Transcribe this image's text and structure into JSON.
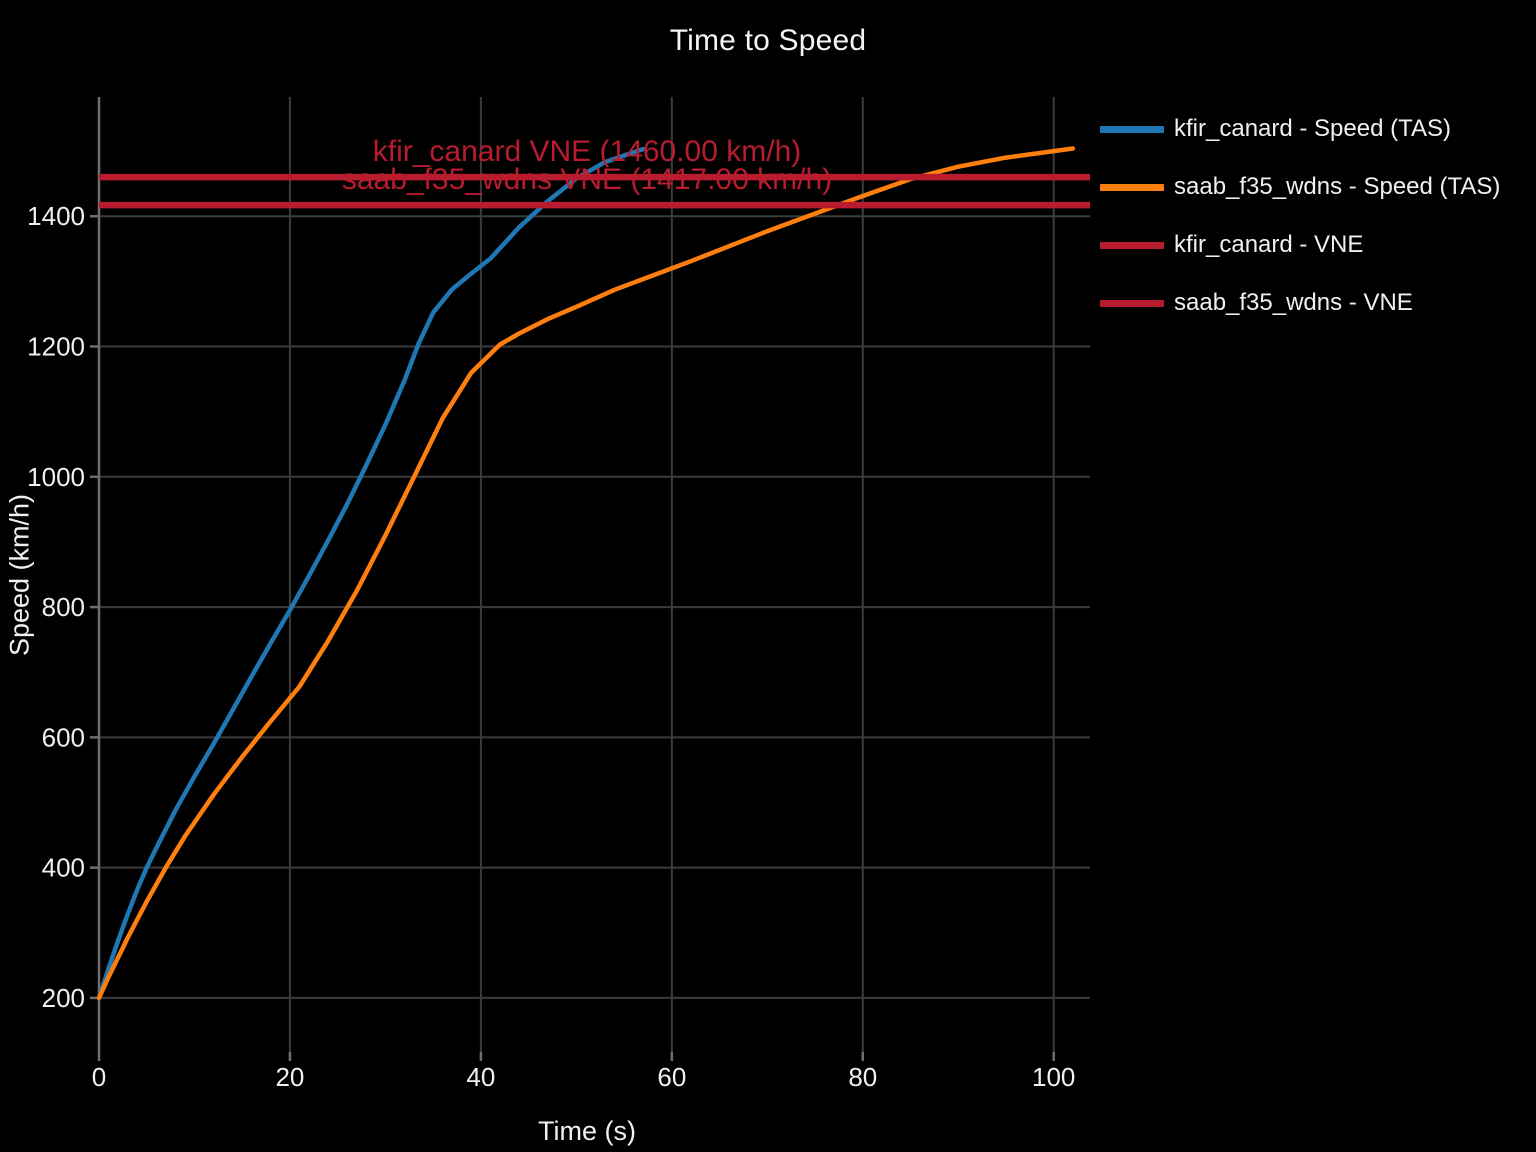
{
  "title": "Time to Speed",
  "colors": {
    "background": "#000000",
    "grid": "#3c3c3c",
    "axis": "#6f6f6f",
    "text": "#f0f0f0",
    "blue": "#1f77b4",
    "orange": "#ff7f0e",
    "red": "#b91c2e"
  },
  "legend": [
    {
      "label": "kfir_canard - Speed (TAS)",
      "color": "#1f77b4"
    },
    {
      "label": "saab_f35_wdns - Speed (TAS)",
      "color": "#ff7f0e"
    },
    {
      "label": "kfir_canard - VNE",
      "color": "#b91c2e"
    },
    {
      "label": "saab_f35_wdns - VNE",
      "color": "#b91c2e"
    }
  ],
  "chart_data": {
    "type": "line",
    "title": "Time to Speed",
    "xlabel": "Time (s)",
    "ylabel": "Speed (km/h)",
    "xlim": [
      0,
      103.8
    ],
    "ylim": [
      117,
      1583
    ],
    "xticks": [
      0,
      20,
      40,
      60,
      80,
      100
    ],
    "yticks": [
      200,
      400,
      600,
      800,
      1000,
      1200,
      1400
    ],
    "grid": true,
    "legend_position": "right-outside",
    "series": [
      {
        "name": "kfir_canard - Speed (TAS)",
        "color": "#1f77b4",
        "x": [
          0,
          1,
          2,
          3,
          4,
          5,
          6,
          8,
          10,
          12,
          14,
          16,
          18,
          20,
          22,
          24,
          26,
          28,
          30,
          32,
          33.5,
          35,
          37,
          39,
          41,
          44,
          47,
          50,
          53,
          57
        ],
        "y": [
          200,
          245,
          288,
          328,
          366,
          400,
          430,
          488,
          540,
          590,
          642,
          694,
          745,
          795,
          848,
          902,
          958,
          1018,
          1080,
          1148,
          1205,
          1252,
          1288,
          1312,
          1335,
          1383,
          1423,
          1458,
          1483,
          1503
        ]
      },
      {
        "name": "saab_f35_wdns - Speed (TAS)",
        "color": "#ff7f0e",
        "x": [
          0,
          1,
          2,
          3,
          5,
          7,
          9,
          12,
          15,
          18,
          21,
          24,
          27,
          30,
          33,
          36,
          39,
          42,
          44,
          47,
          50,
          54,
          58,
          62,
          66,
          70,
          75,
          80,
          85,
          90,
          95,
          100,
          102
        ],
        "y": [
          200,
          232,
          262,
          292,
          348,
          400,
          448,
          512,
          570,
          625,
          678,
          748,
          825,
          910,
          1000,
          1090,
          1160,
          1203,
          1220,
          1242,
          1261,
          1287,
          1309,
          1331,
          1354,
          1377,
          1404,
          1431,
          1457,
          1476,
          1490,
          1500,
          1504
        ]
      }
    ],
    "hlines": [
      {
        "name": "kfir_canard - VNE",
        "value": 1460,
        "color": "#b91c2e"
      },
      {
        "name": "saab_f35_wdns - VNE",
        "value": 1417,
        "color": "#b91c2e"
      }
    ],
    "annotations": [
      {
        "text": "kfir_canard VNE (1460.00 km/h)",
        "y": 1460,
        "color": "#b91c2e"
      },
      {
        "text": "saab_f35_wdns VNE (1417.00 km/h)",
        "y": 1417,
        "color": "#b91c2e"
      }
    ]
  }
}
